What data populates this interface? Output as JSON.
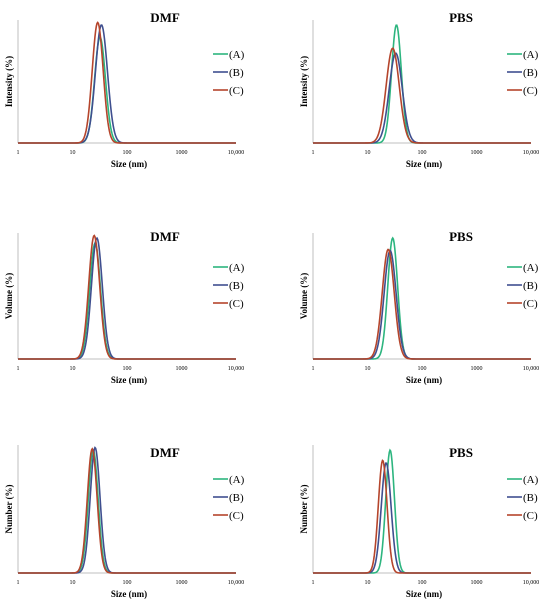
{
  "chart_data": [
    {
      "type": "line",
      "title": "DMF",
      "xlabel": "Size (nm)",
      "ylabel": "Intensity (%)",
      "xscale": "log",
      "xlim": [
        1,
        10000
      ],
      "xticks": [
        "1",
        "10",
        "100",
        "1000",
        "10,000"
      ],
      "series": [
        {
          "name": "(A)",
          "color": "#2db57f",
          "peak": 32,
          "height": 0.86,
          "width": 0.1
        },
        {
          "name": "(B)",
          "color": "#3f4f8f",
          "peak": 34,
          "height": 0.96,
          "width": 0.11
        },
        {
          "name": "(C)",
          "color": "#b5452c",
          "peak": 29,
          "height": 0.98,
          "width": 0.1
        }
      ]
    },
    {
      "type": "line",
      "title": "PBS",
      "xlabel": "Size (nm)",
      "ylabel": "Intensity (%)",
      "xscale": "log",
      "xlim": [
        1,
        10000
      ],
      "xticks": [
        "1",
        "10",
        "100",
        "1000",
        "10,000"
      ],
      "series": [
        {
          "name": "(A)",
          "color": "#2db57f",
          "peak": 34,
          "height": 0.96,
          "width": 0.09
        },
        {
          "name": "(B)",
          "color": "#3f4f8f",
          "peak": 33,
          "height": 0.73,
          "width": 0.12
        },
        {
          "name": "(C)",
          "color": "#b5452c",
          "peak": 29,
          "height": 0.77,
          "width": 0.12
        }
      ]
    },
    {
      "type": "line",
      "title": "DMF",
      "xlabel": "Size (nm)",
      "ylabel": "Volume (%)",
      "xscale": "log",
      "xlim": [
        1,
        10000
      ],
      "xticks": [
        "1",
        "10",
        "100",
        "1000",
        "10,000"
      ],
      "series": [
        {
          "name": "(A)",
          "color": "#2db57f",
          "peak": 26,
          "height": 0.92,
          "width": 0.1
        },
        {
          "name": "(B)",
          "color": "#3f4f8f",
          "peak": 28,
          "height": 0.96,
          "width": 0.1
        },
        {
          "name": "(C)",
          "color": "#b5452c",
          "peak": 25,
          "height": 0.98,
          "width": 0.1
        }
      ]
    },
    {
      "type": "line",
      "title": "PBS",
      "xlabel": "Size (nm)",
      "ylabel": "Volume (%)",
      "xscale": "log",
      "xlim": [
        1,
        10000
      ],
      "xticks": [
        "1",
        "10",
        "100",
        "1000",
        "10,000"
      ],
      "series": [
        {
          "name": "(A)",
          "color": "#2db57f",
          "peak": 29,
          "height": 0.96,
          "width": 0.09
        },
        {
          "name": "(B)",
          "color": "#3f4f8f",
          "peak": 26,
          "height": 0.86,
          "width": 0.11
        },
        {
          "name": "(C)",
          "color": "#b5452c",
          "peak": 24,
          "height": 0.87,
          "width": 0.11
        }
      ]
    },
    {
      "type": "line",
      "title": "DMF",
      "xlabel": "Size (nm)",
      "ylabel": "Number (%)",
      "xscale": "log",
      "xlim": [
        1,
        10000
      ],
      "xticks": [
        "1",
        "10",
        "100",
        "1000",
        "10,000"
      ],
      "series": [
        {
          "name": "(A)",
          "color": "#2db57f",
          "peak": 24,
          "height": 0.96,
          "width": 0.09
        },
        {
          "name": "(B)",
          "color": "#3f4f8f",
          "peak": 26,
          "height": 0.98,
          "width": 0.09
        },
        {
          "name": "(C)",
          "color": "#b5452c",
          "peak": 23,
          "height": 0.97,
          "width": 0.09
        }
      ]
    },
    {
      "type": "line",
      "title": "PBS",
      "xlabel": "Size (nm)",
      "ylabel": "Number (%)",
      "xscale": "log",
      "xlim": [
        1,
        10000
      ],
      "xticks": [
        "1",
        "10",
        "100",
        "1000",
        "10,000"
      ],
      "series": [
        {
          "name": "(A)",
          "color": "#2db57f",
          "peak": 26,
          "height": 0.96,
          "width": 0.08
        },
        {
          "name": "(B)",
          "color": "#3f4f8f",
          "peak": 22,
          "height": 0.86,
          "width": 0.09
        },
        {
          "name": "(C)",
          "color": "#b5452c",
          "peak": 19,
          "height": 0.88,
          "width": 0.08
        }
      ]
    }
  ]
}
